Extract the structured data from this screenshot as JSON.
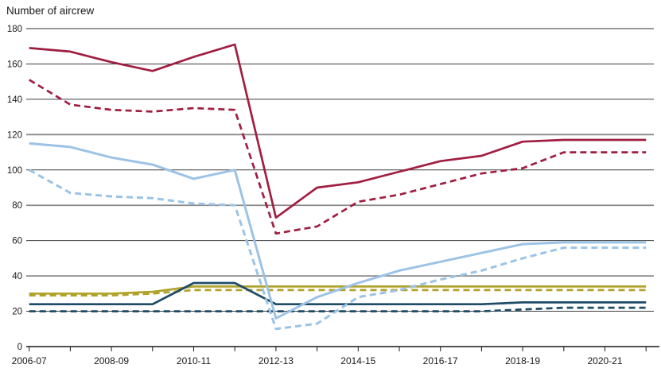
{
  "chart_data": {
    "type": "line",
    "title": "Number of aircrew",
    "categories": [
      "2006-07",
      "2007-08",
      "2008-09",
      "2009-10",
      "2010-11",
      "2011-12",
      "2012-13",
      "2013-14",
      "2014-15",
      "2015-16",
      "2016-17",
      "2017-18",
      "2018-19",
      "2019-20",
      "2020-21",
      "2021-22"
    ],
    "x_labels_shown": [
      "2006-07",
      "2008-09",
      "2010-11",
      "2012-13",
      "2014-15",
      "2016-17",
      "2018-19",
      "2020-21"
    ],
    "x_label_every": 2,
    "ylim": [
      0,
      180
    ],
    "ytick_step": 20,
    "ytick_labels": [
      "0",
      "20",
      "40",
      "60",
      "80",
      "100",
      "120",
      "140",
      "160",
      "180"
    ],
    "grid": "horizontal",
    "legend": "none",
    "colors": {
      "dark_red": "#a01e41",
      "light_blue": "#9cc3e5",
      "olive": "#b0a32b",
      "navy": "#1e4b66",
      "grid_minor": "#3d3d3d",
      "grid_major": "#8a8a8a",
      "axis": "#1a1a1a"
    },
    "series": [
      {
        "name": "olive-solid",
        "color": "#b0a32b",
        "style": "solid",
        "values": [
          30,
          30,
          30,
          31,
          34,
          34,
          34,
          34,
          34,
          34,
          34,
          34,
          34,
          34,
          34,
          34
        ]
      },
      {
        "name": "olive-dashed",
        "color": "#b0a32b",
        "style": "dashed",
        "values": [
          29,
          29,
          29,
          30,
          32,
          32,
          32,
          32,
          32,
          32,
          32,
          32,
          32,
          32,
          32,
          32
        ]
      },
      {
        "name": "navy-solid",
        "color": "#1e4b66",
        "style": "solid",
        "values": [
          24,
          24,
          24,
          24,
          36,
          36,
          24,
          24,
          24,
          24,
          24,
          24,
          25,
          25,
          25,
          25
        ]
      },
      {
        "name": "navy-dashed",
        "color": "#1e4b66",
        "style": "dashed",
        "values": [
          20,
          20,
          20,
          20,
          20,
          20,
          20,
          20,
          20,
          20,
          20,
          20,
          21,
          22,
          22,
          22
        ]
      },
      {
        "name": "light-blue-solid",
        "color": "#9cc3e5",
        "style": "solid",
        "values": [
          115,
          113,
          107,
          103,
          95,
          100,
          16,
          28,
          36,
          43,
          48,
          53,
          58,
          59,
          59,
          59
        ]
      },
      {
        "name": "light-blue-dashed",
        "color": "#9cc3e5",
        "style": "dashed",
        "values": [
          100,
          87,
          85,
          84,
          81,
          80,
          10,
          13,
          28,
          32,
          38,
          43,
          50,
          56,
          56,
          56
        ]
      },
      {
        "name": "dark-red-solid",
        "color": "#a01e41",
        "style": "solid",
        "values": [
          169,
          167,
          161,
          156,
          164,
          171,
          73,
          90,
          93,
          99,
          105,
          108,
          116,
          117,
          117,
          117
        ]
      },
      {
        "name": "dark-red-dashed",
        "color": "#a01e41",
        "style": "dashed",
        "values": [
          151,
          137,
          134,
          133,
          135,
          134,
          64,
          68,
          82,
          86,
          92,
          98,
          101,
          110,
          110,
          110
        ]
      }
    ]
  }
}
